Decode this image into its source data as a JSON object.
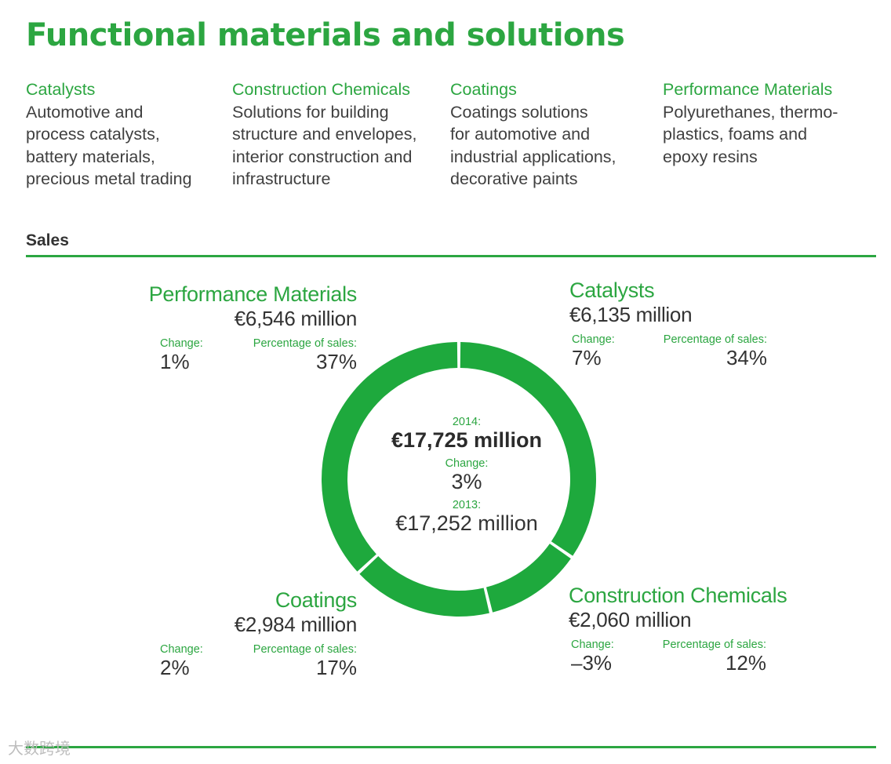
{
  "page": {
    "title": "Functional materials and solutions",
    "sales_heading": "Sales",
    "watermark": "大数跨境",
    "accent_color": "#2ca641"
  },
  "segments": [
    {
      "title": "Catalysts",
      "description": "Automotive and\nprocess catalysts,\nbattery materials,\nprecious metal trading"
    },
    {
      "title": "Construction Chemicals",
      "description": "Solutions for building\nstructure and envelopes,\ninterior construction and\ninfrastructure"
    },
    {
      "title": "Coatings",
      "description": "Coatings solutions\nfor automotive and\nindustrial applications,\ndecorative paints"
    },
    {
      "title": "Performance Materials",
      "description": "Polyurethanes, thermo-\nplastics, foams and\nepoxy resins"
    }
  ],
  "chart_data": {
    "type": "pie",
    "title": "",
    "center": {
      "year_current_label": "2014:",
      "total_current": "€17,725 million",
      "change_label": "Change:",
      "change_value": "3%",
      "year_prior_label": "2013:",
      "total_prior": "€17,252 million"
    },
    "change_label": "Change:",
    "share_label": "Percentage of sales:",
    "slices": [
      {
        "name": "Catalysts",
        "value": 6135,
        "amount": "€6,135 million",
        "change": "7%",
        "share": 34,
        "share_text": "34%"
      },
      {
        "name": "Construction Chemicals",
        "value": 2060,
        "amount": "€2,060 million",
        "change": "–3%",
        "share": 12,
        "share_text": "12%"
      },
      {
        "name": "Coatings",
        "value": 2984,
        "amount": "€2,984 million",
        "change": "2%",
        "share": 17,
        "share_text": "17%"
      },
      {
        "name": "Performance Materials",
        "value": 6546,
        "amount": "€6,546 million",
        "change": "1%",
        "share": 37,
        "share_text": "37%"
      }
    ],
    "slice_color": "#1ea93d"
  }
}
